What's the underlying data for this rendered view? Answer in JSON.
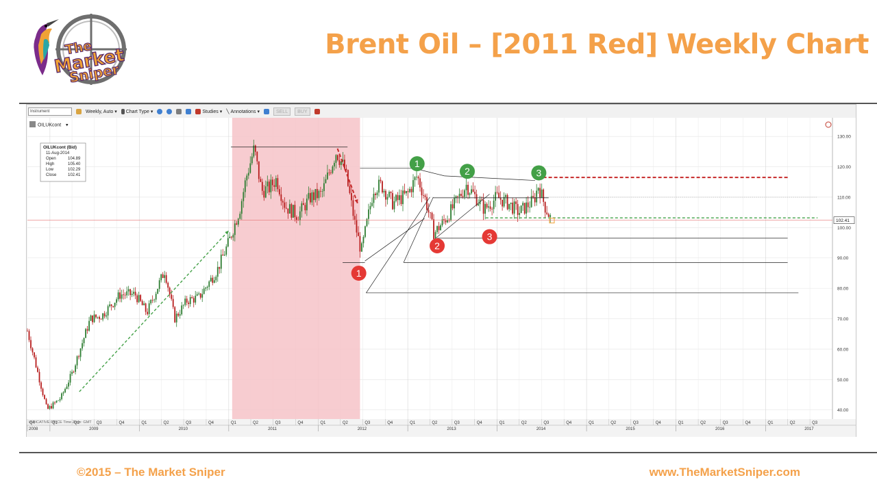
{
  "slide": {
    "title": "Brent Oil – [2011 Red] Weekly Chart",
    "footer_left": "©2015 – The Market Sniper",
    "footer_right": "www.TheMarketSniper.com",
    "logo_line1": "The",
    "logo_line2": "Market",
    "logo_line3": "Sniper"
  },
  "colors": {
    "accent": "#f4a14a",
    "up_candle": "#2e7d32",
    "down_candle": "#b71c1c",
    "highlight": "#f6c3c8"
  },
  "toolbar": {
    "instrument_placeholder": "Instrument",
    "interval": "Weekly, Auto",
    "chart_type": "Chart Type",
    "studies": "Studies",
    "annotations": "Annotations",
    "sell": "SELL",
    "buy": "BUY"
  },
  "symbol_label": "OILUKcont",
  "footnote": "INDICATIVE PRICE  Time Zone: GMT",
  "last_price_label": "102.41",
  "ohlc_box": {
    "title": "OILUKcont (Bid)",
    "date": "11-Aug-2014",
    "rows": [
      {
        "label": "Open",
        "value": "104.89"
      },
      {
        "label": "High",
        "value": "105.40"
      },
      {
        "label": "Low",
        "value": "102.29"
      },
      {
        "label": "Close",
        "value": "102.41"
      }
    ]
  },
  "chart_data": {
    "type": "candlestick",
    "title": "",
    "xlabel": "",
    "ylabel": "",
    "ylim": [
      37,
      135
    ],
    "yticks": [
      "40.00",
      "50.00",
      "60.00",
      "70.00",
      "80.00",
      "90.00",
      "100.00",
      "110.00",
      "120.00",
      "130.00"
    ],
    "quarter_ticks": [
      "Q4",
      "Q1",
      "Q2",
      "Q3",
      "Q4",
      "Q1",
      "Q2",
      "Q3",
      "Q4",
      "Q1",
      "Q2",
      "Q3",
      "Q4",
      "Q1",
      "Q2",
      "Q3",
      "Q4",
      "Q1",
      "Q2",
      "Q3",
      "Q4",
      "Q1",
      "Q2",
      "Q3",
      "Q4",
      "Q1",
      "Q2",
      "Q3",
      "Q4",
      "Q1",
      "Q2",
      "Q3",
      "Q4",
      "Q1",
      "Q2",
      "Q3"
    ],
    "years": [
      "2008",
      "2009",
      "2010",
      "2011",
      "2012",
      "2013",
      "2014",
      "2015",
      "2016",
      "2017"
    ],
    "x_range": [
      "2008-10",
      "2017-10"
    ],
    "price_path": [
      [
        "2008-10-01",
        66
      ],
      [
        "2008-12-20",
        40
      ],
      [
        "2009-02-15",
        44
      ],
      [
        "2009-04-01",
        52
      ],
      [
        "2009-06-15",
        70
      ],
      [
        "2009-08-01",
        71
      ],
      [
        "2009-10-15",
        78
      ],
      [
        "2009-12-15",
        78
      ],
      [
        "2010-02-01",
        72
      ],
      [
        "2010-04-15",
        86
      ],
      [
        "2010-05-25",
        70
      ],
      [
        "2010-07-15",
        76
      ],
      [
        "2010-09-01",
        77
      ],
      [
        "2010-11-15",
        86
      ],
      [
        "2010-12-31",
        95
      ],
      [
        "2011-02-15",
        106
      ],
      [
        "2011-03-15",
        117
      ],
      [
        "2011-04-15",
        126
      ],
      [
        "2011-05-15",
        112
      ],
      [
        "2011-06-15",
        113
      ],
      [
        "2011-07-15",
        116
      ],
      [
        "2011-08-20",
        107
      ],
      [
        "2011-10-10",
        104
      ],
      [
        "2011-12-01",
        110
      ],
      [
        "2012-01-15",
        111
      ],
      [
        "2012-03-15",
        125
      ],
      [
        "2012-04-20",
        119
      ],
      [
        "2012-05-31",
        101
      ],
      [
        "2012-06-25",
        92
      ],
      [
        "2012-08-15",
        113
      ],
      [
        "2012-09-15",
        114
      ],
      [
        "2012-11-01",
        108
      ],
      [
        "2012-12-31",
        111
      ],
      [
        "2013-02-08",
        117
      ],
      [
        "2013-03-15",
        109
      ],
      [
        "2013-04-18",
        98
      ],
      [
        "2013-06-15",
        104
      ],
      [
        "2013-08-28",
        114
      ],
      [
        "2013-10-15",
        109
      ],
      [
        "2013-11-10",
        106
      ],
      [
        "2013-12-31",
        110
      ],
      [
        "2014-02-15",
        108
      ],
      [
        "2014-03-31",
        105
      ],
      [
        "2014-05-31",
        109
      ],
      [
        "2014-06-19",
        114
      ],
      [
        "2014-07-15",
        107
      ],
      [
        "2014-08-11",
        102.41
      ]
    ],
    "last_price": 102.41,
    "highlight_period": [
      "2011-01-15",
      "2012-06-20"
    ],
    "horizontal_levels": [
      {
        "y": 126.5,
        "from": "2011-01-10",
        "to": "2012-04-30",
        "style": "solid"
      },
      {
        "y": 119.5,
        "from": "2012-06-20",
        "to": "2013-02-20",
        "style": "solid"
      },
      {
        "y": 116.5,
        "from": "2014-06-15",
        "to": "2017-04-01",
        "style": "dashed-red"
      },
      {
        "y": 110.0,
        "from": "2014-06-01",
        "to": "2017-08-01",
        "style": "dotted-gray"
      },
      {
        "y": 103.2,
        "from": "2013-11-15",
        "to": "2017-08-01",
        "style": "dashed-green"
      },
      {
        "y": 109.8,
        "from": "2013-04-15",
        "to": "2014-07-30",
        "style": "solid"
      },
      {
        "y": 96.5,
        "from": "2013-05-01",
        "to": "2017-04-01",
        "style": "solid"
      },
      {
        "y": 88.5,
        "from": "2012-04-10",
        "to": "2012-07-10",
        "style": "solid"
      },
      {
        "y": 88.5,
        "from": "2012-12-15",
        "to": "2017-04-01",
        "style": "solid"
      },
      {
        "y": 78.5,
        "from": "2012-07-15",
        "to": "2017-05-15",
        "style": "solid"
      }
    ],
    "trend_lines": [
      {
        "from": [
          "2009-05-01",
          46
        ],
        "to": [
          "2011-01-01",
          99
        ],
        "style": "dashed-green"
      },
      {
        "from": [
          "2012-03-20",
          126
        ],
        "to": [
          "2012-06-10",
          108
        ],
        "style": "dashed-red"
      },
      {
        "from": [
          "2012-07-15",
          78.5
        ],
        "to": [
          "2013-04-01",
          110
        ],
        "style": "solid"
      },
      {
        "from": [
          "2012-12-15",
          88.5
        ],
        "to": [
          "2013-04-15",
          110
        ],
        "style": "solid"
      },
      {
        "from": [
          "2012-07-10",
          89
        ],
        "to": [
          "2013-03-10",
          103
        ],
        "style": "solid"
      },
      {
        "from": [
          "2013-04-25",
          96.5
        ],
        "to": [
          "2013-12-01",
          111
        ],
        "style": "solid"
      },
      {
        "from": [
          "2013-02-20",
          119
        ],
        "to": [
          "2013-05-31",
          117
        ],
        "style": "solid"
      },
      {
        "from": [
          "2013-05-31",
          117
        ],
        "to": [
          "2014-06-05",
          115.5
        ],
        "style": "solid"
      }
    ],
    "markers": [
      {
        "label": "1",
        "kind": "high",
        "date": "2013-02-08",
        "y": 121
      },
      {
        "label": "2",
        "kind": "high",
        "date": "2013-09-01",
        "y": 118.5
      },
      {
        "label": "3",
        "kind": "high",
        "date": "2014-06-20",
        "y": 118
      },
      {
        "label": "1",
        "kind": "low",
        "date": "2012-06-15",
        "y": 85
      },
      {
        "label": "2",
        "kind": "low",
        "date": "2013-05-01",
        "y": 94
      },
      {
        "label": "3",
        "kind": "low",
        "date": "2013-12-01",
        "y": 97
      }
    ]
  }
}
